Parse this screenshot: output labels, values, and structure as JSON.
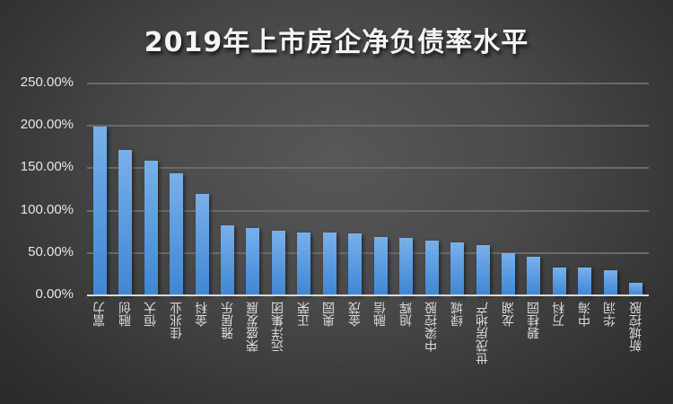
{
  "title": "2019年上市房企净负债率水平",
  "colors": {
    "bar": "#5b9be0",
    "background": "#454545",
    "gridline": "#6a6a6a",
    "axis": "#d8d8d8",
    "text": "#e6e6e6"
  },
  "y_axis": {
    "ticks": [
      "250.00%",
      "200.00%",
      "150.00%",
      "100.00%",
      "50.00%",
      "0.00%"
    ]
  },
  "x_axis": {
    "labels": [
      "富力",
      "融创",
      "恒大",
      "佳兆业",
      "金科",
      "雅居乐",
      "荣盛发展",
      "远洋集团",
      "正荣",
      "奥园",
      "金茂",
      "融信",
      "旭辉",
      "中梁控股",
      "绿城",
      "世茂房地产",
      "龙湖",
      "碧桂园",
      "万科",
      "中海",
      "华润",
      "新城控股"
    ]
  },
  "chart_data": {
    "type": "bar",
    "title": "2019年上市房企净负债率水平",
    "xlabel": "",
    "ylabel": "",
    "categories": [
      "富力",
      "融创",
      "恒大",
      "佳兆业",
      "金科",
      "雅居乐",
      "荣盛发展",
      "远洋集团",
      "正荣",
      "奥园",
      "金茂",
      "融信",
      "旭辉",
      "中梁控股",
      "绿城",
      "世茂房地产",
      "龙湖",
      "碧桂园",
      "万科",
      "中海",
      "华润",
      "新城控股"
    ],
    "values": [
      199.6,
      172.0,
      159.0,
      144.0,
      120.0,
      82.6,
      79.8,
      76.6,
      74.2,
      74.0,
      73.0,
      68.9,
      67.8,
      64.6,
      62.5,
      59.6,
      49.8,
      45.9,
      32.8,
      32.8,
      30.0,
      14.8
    ],
    "value_format": "percent",
    "ylim": [
      0,
      250
    ],
    "yticks": [
      0,
      50,
      100,
      150,
      200,
      250
    ],
    "ytick_labels": [
      "0.00%",
      "50.00%",
      "100.00%",
      "150.00%",
      "200.00%",
      "250.00%"
    ],
    "grid": true,
    "legend": null
  }
}
